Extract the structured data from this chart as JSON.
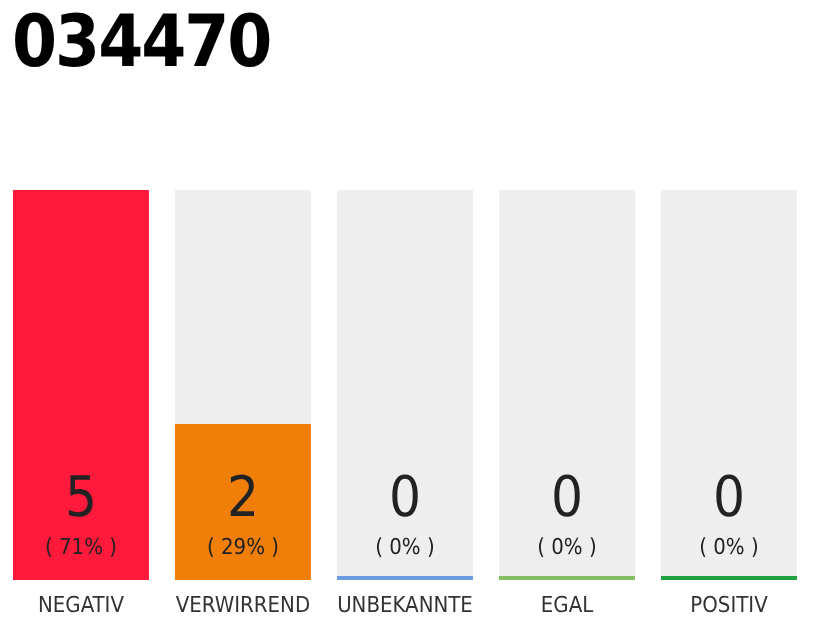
{
  "chart_data": {
    "type": "bar",
    "title": "034470",
    "categories": [
      "NEGATIV",
      "VERWIRREND",
      "UNBEKANNTE",
      "EGAL",
      "POSITIV"
    ],
    "values": [
      5,
      2,
      0,
      0,
      0
    ],
    "value_labels": [
      "5\n( 71% )",
      "2\n( 29% )",
      "0\n( 0% )",
      "0\n( 0% )",
      "0\n( 0% )"
    ],
    "colors": [
      "#ff1a3c",
      "#f07f0a",
      "#6a9be0",
      "#80c060",
      "#20a040"
    ],
    "tick_labels": "x"
  }
}
